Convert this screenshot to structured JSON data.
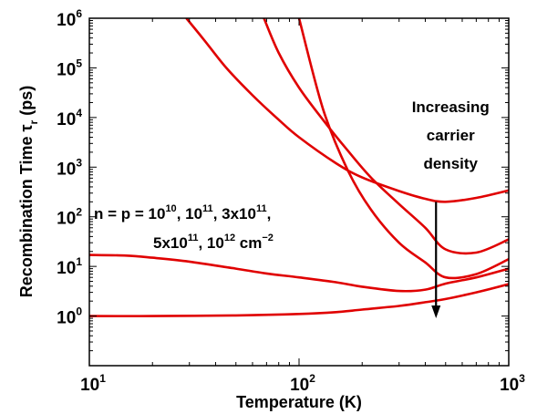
{
  "chart_data": {
    "type": "line",
    "xscale": "log",
    "yscale": "log",
    "xlabel": "Temperature (K)",
    "ylabel_main": "Recombination Time τ",
    "ylabel_sub": "r",
    "ylabel_unit": " (ps)",
    "xlim": [
      10,
      1000
    ],
    "ylim": [
      0.1,
      1000000
    ],
    "grid": false,
    "x_ticks": [
      {
        "value": 10,
        "base": "10",
        "exp": "1"
      },
      {
        "value": 100,
        "base": "10",
        "exp": "2"
      },
      {
        "value": 1000,
        "base": "10",
        "exp": "3"
      }
    ],
    "y_ticks": [
      {
        "value": 1,
        "base": "10",
        "exp": "0"
      },
      {
        "value": 10,
        "base": "10",
        "exp": "1"
      },
      {
        "value": 100,
        "base": "10",
        "exp": "2"
      },
      {
        "value": 1000,
        "base": "10",
        "exp": "3"
      },
      {
        "value": 10000,
        "base": "10",
        "exp": "4"
      },
      {
        "value": 100000,
        "base": "10",
        "exp": "5"
      },
      {
        "value": 1000000,
        "base": "10",
        "exp": "6"
      }
    ],
    "series_color": "#e00000",
    "series": [
      {
        "x": [
          29,
          35,
          45,
          60,
          80,
          100,
          150,
          200,
          300,
          400,
          500,
          700,
          1000
        ],
        "y": [
          1000000,
          380000,
          100000,
          28000,
          9000,
          4000,
          1200,
          620,
          330,
          230,
          200,
          240,
          340
        ]
      },
      {
        "x": [
          68,
          80,
          100,
          130,
          170,
          220,
          300,
          400,
          500,
          700,
          1000
        ],
        "y": [
          1000000,
          200000,
          40000,
          9000,
          2200,
          620,
          180,
          60,
          22,
          19,
          35
        ]
      },
      {
        "x": [
          100,
          130,
          170,
          220,
          300,
          400,
          500,
          700,
          1000
        ],
        "y": [
          1000000,
          15000,
          900,
          140,
          30,
          12,
          6,
          7,
          14
        ]
      },
      {
        "x": [
          10,
          15,
          20,
          30,
          50,
          70,
          100,
          150,
          200,
          300,
          400,
          500,
          700,
          1000
        ],
        "y": [
          17,
          16.5,
          15,
          12.5,
          9,
          7.2,
          6,
          4.8,
          3.9,
          3.2,
          3.4,
          4.5,
          6,
          9
        ]
      },
      {
        "x": [
          10,
          20,
          50,
          100,
          150,
          200,
          300,
          400,
          500,
          700,
          1000
        ],
        "y": [
          1.0,
          1.0,
          1.03,
          1.1,
          1.2,
          1.35,
          1.6,
          1.9,
          2.2,
          3.0,
          4.4
        ]
      }
    ],
    "annotation": {
      "line1_parts": [
        {
          "text": "n = p = 10",
          "sup": false
        },
        {
          "text": "10",
          "sup": true
        },
        {
          "text": ", 10",
          "sup": false
        },
        {
          "text": "11",
          "sup": true
        },
        {
          "text": ", 3x10",
          "sup": false
        },
        {
          "text": "11",
          "sup": true
        },
        {
          "text": ",",
          "sup": false
        }
      ],
      "line2_parts": [
        {
          "text": "5x10",
          "sup": false
        },
        {
          "text": "11",
          "sup": true
        },
        {
          "text": ", 10",
          "sup": false
        },
        {
          "text": "12",
          "sup": true
        },
        {
          "text": " cm",
          "sup": false
        },
        {
          "text": "−2",
          "sup": true
        }
      ],
      "arrow_label": [
        "Increasing",
        "carrier",
        "density"
      ],
      "arrow_x": 450,
      "arrow_from_y": 200,
      "arrow_to_y": 0.9
    }
  }
}
